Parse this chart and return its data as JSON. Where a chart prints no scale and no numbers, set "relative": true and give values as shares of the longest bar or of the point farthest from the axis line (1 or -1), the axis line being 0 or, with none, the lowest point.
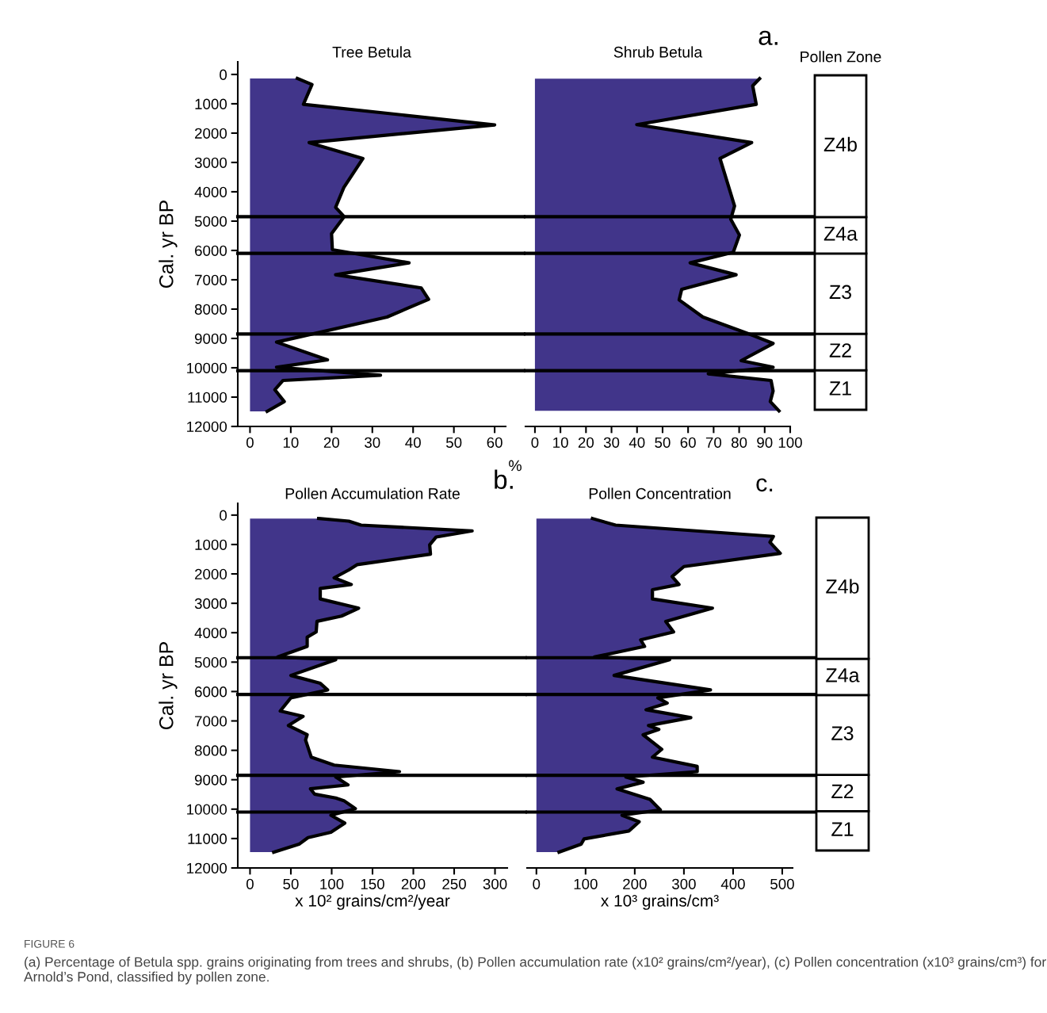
{
  "chart_data": [
    {
      "type": "area",
      "orientation": "horizontal",
      "title": "Tree Betula",
      "xlabel": "%",
      "ylabel": "Cal. yr BP",
      "color": "#41358a",
      "x": [
        135,
        342,
        1018,
        1720,
        2324,
        2865,
        3856,
        4530,
        4847,
        5430,
        5973,
        6423,
        6829,
        7279,
        7667,
        8270,
        9126,
        9730,
        9982,
        10252,
        10432,
        10748,
        11153,
        11486
      ],
      "values": [
        11.6,
        15.2,
        13.1,
        60,
        14.5,
        27.7,
        23,
        21,
        23.1,
        20,
        20.2,
        39,
        21,
        42,
        43.8,
        33.6,
        6.5,
        19,
        6.5,
        32,
        8.1,
        6.1,
        8.4,
        4.2
      ],
      "xlim": [
        -3,
        62.7
      ],
      "xticks": [
        0,
        10,
        20,
        30,
        40,
        50,
        60
      ],
      "ylim": [
        12000,
        -430
      ],
      "yticks": [
        0,
        1000,
        2000,
        3000,
        4000,
        5000,
        6000,
        7000,
        8000,
        9000,
        10000,
        11000,
        12000
      ],
      "ref_lines": [
        {
          "axis": "y",
          "value": 4850
        },
        {
          "axis": "y",
          "value": 6100
        },
        {
          "axis": "y",
          "value": 8850
        },
        {
          "axis": "y",
          "value": 10100
        }
      ]
    },
    {
      "type": "area",
      "orientation": "horizontal",
      "title": "Shrub Betula",
      "color": "#41358a",
      "tick_labels": "x",
      "x": [
        144,
        387,
        1018,
        1712,
        2324,
        2865,
        4486,
        4937,
        5477,
        6063,
        6423,
        6829,
        7324,
        7685,
        8270,
        8901,
        9171,
        9757,
        9982,
        10207,
        10432,
        10793,
        11153,
        11468
      ],
      "values": [
        88,
        85.3,
        86.7,
        39.9,
        84.9,
        72.5,
        78.2,
        76.7,
        80.1,
        77.7,
        60.8,
        78.8,
        57.5,
        56.5,
        65.8,
        85.5,
        93.3,
        80.8,
        93.3,
        67.9,
        92.5,
        93.3,
        92.2,
        95.6
      ],
      "xlim": [
        -3.7,
        100
      ],
      "xticks": [
        0,
        10,
        20,
        30,
        40,
        50,
        60,
        70,
        80,
        90,
        100
      ],
      "ylim": [
        12000,
        -430
      ],
      "ref_lines": [
        {
          "axis": "y",
          "value": 4850
        },
        {
          "axis": "y",
          "value": 6100
        },
        {
          "axis": "y",
          "value": 8850
        },
        {
          "axis": "y",
          "value": 10100
        }
      ],
      "annotations": [
        "a."
      ]
    },
    {
      "type": "bar",
      "stacked": true,
      "relative": true,
      "title": "Pollen Zone",
      "tick_labels": false,
      "categories": [
        null
      ],
      "series": [
        {
          "name": "Z1",
          "color": "#ffffff",
          "values": [
            0.118
          ]
        },
        {
          "name": "Z2",
          "color": "#ffffff",
          "values": [
            0.109
          ]
        },
        {
          "name": "Z3",
          "color": "#ffffff",
          "values": [
            0.24
          ]
        },
        {
          "name": "Z4a",
          "color": "#ffffff",
          "values": [
            0.109
          ]
        },
        {
          "name": "Z4b",
          "color": "#ffffff",
          "values": [
            0.424
          ]
        }
      ]
    },
    {
      "type": "area",
      "orientation": "horizontal",
      "title": "Pollen Accumulation Rate",
      "xlabel": "x 10² grains/cm²/year",
      "ylabel": "Cal. yr BP",
      "color": "#41358a",
      "x": [
        117,
        206,
        341,
        538,
        744,
        1013,
        1327,
        1686,
        1865,
        2134,
        2359,
        2493,
        2852,
        3166,
        3435,
        3614,
        3973,
        4152,
        4466,
        4825,
        4915,
        5453,
        5722,
        5946,
        6215,
        6664,
        6843,
        7157,
        7471,
        7650,
        8233,
        8502,
        8726,
        8906,
        9175,
        9309,
        9489,
        9623,
        9713,
        9982,
        10206,
        10475,
        10789,
        10969,
        11193,
        11462
      ],
      "values": [
        84,
        121,
        136,
        272,
        228,
        220,
        221,
        131,
        121,
        103,
        124,
        86,
        86,
        133,
        112,
        82,
        81,
        70,
        70,
        34,
        105,
        50,
        86,
        95,
        50,
        37,
        65,
        47,
        70,
        68,
        75,
        103,
        183,
        105,
        120,
        74,
        79,
        105,
        115,
        129,
        99,
        116,
        99,
        71,
        60,
        29
      ],
      "xlim": [
        -15,
        315
      ],
      "xticks": [
        0,
        50,
        100,
        150,
        200,
        250,
        300
      ],
      "ylim": [
        12000,
        -400
      ],
      "yticks": [
        0,
        1000,
        2000,
        3000,
        4000,
        5000,
        6000,
        7000,
        8000,
        9000,
        10000,
        11000,
        12000
      ],
      "ref_lines": [
        {
          "axis": "y",
          "value": 4850
        },
        {
          "axis": "y",
          "value": 6100
        },
        {
          "axis": "y",
          "value": 8850
        },
        {
          "axis": "y",
          "value": 10100
        }
      ],
      "annotations": [
        "b."
      ]
    },
    {
      "type": "area",
      "orientation": "horizontal",
      "title": "Pollen Concentration",
      "xlabel": "x 10³ grains/cm³",
      "color": "#41358a",
      "tick_labels": "x",
      "x": [
        117,
        341,
        726,
        924,
        1300,
        1749,
        2090,
        2359,
        2538,
        2852,
        3166,
        3614,
        3973,
        4242,
        4466,
        4825,
        4915,
        5453,
        5946,
        6215,
        6395,
        6619,
        6888,
        7157,
        7291,
        7471,
        7964,
        8233,
        8547,
        8726,
        8906,
        9085,
        9309,
        9668,
        10027,
        10206,
        10430,
        10744,
        11013,
        11193,
        11462
      ],
      "values": [
        114,
        161,
        482,
        475,
        496,
        300,
        276,
        290,
        236,
        236,
        358,
        263,
        279,
        212,
        220,
        118,
        271,
        158,
        354,
        247,
        266,
        223,
        314,
        228,
        249,
        217,
        255,
        236,
        327,
        327,
        182,
        217,
        164,
        231,
        252,
        174,
        209,
        188,
        97,
        91,
        46
      ],
      "xlim": [
        -19,
        521
      ],
      "xticks": [
        0,
        100,
        200,
        300,
        400,
        500
      ],
      "ylim": [
        12000,
        -400
      ],
      "ref_lines": [
        {
          "axis": "y",
          "value": 4850
        },
        {
          "axis": "y",
          "value": 6100
        },
        {
          "axis": "y",
          "value": 8850
        },
        {
          "axis": "y",
          "value": 10100
        }
      ],
      "annotations": [
        "c.",
        "FIGURE 6",
        "(a) Percentage of Betula spp. grains originating from trees and shrubs, (b) Pollen accumulation rate (x10² grains/cm²/year), (c) Pollen concentration (x10³ grains/cm³) for Arnold’s Pond, classified by pollen zone."
      ]
    },
    {
      "type": "bar",
      "stacked": true,
      "relative": true,
      "tick_labels": false,
      "categories": [
        null
      ],
      "series": [
        {
          "name": "Z1",
          "color": "#ffffff",
          "values": [
            0.118
          ]
        },
        {
          "name": "Z2",
          "color": "#ffffff",
          "values": [
            0.109
          ]
        },
        {
          "name": "Z3",
          "color": "#ffffff",
          "values": [
            0.24
          ]
        },
        {
          "name": "Z4a",
          "color": "#ffffff",
          "values": [
            0.109
          ]
        },
        {
          "name": "Z4b",
          "color": "#ffffff",
          "values": [
            0.424
          ]
        }
      ]
    }
  ]
}
